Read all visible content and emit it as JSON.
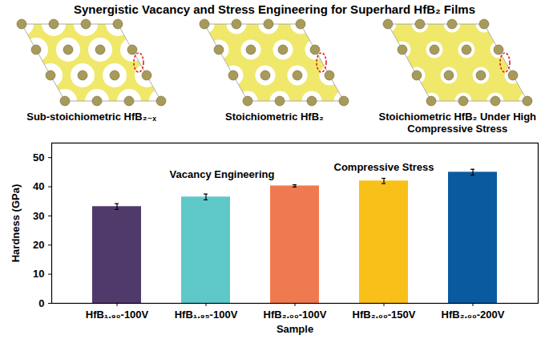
{
  "title": "Synergistic Vacancy and Stress Engineering for Superhard HfB₂ Films",
  "panels": [
    "Sub-stoichiometric HfB₂₋ₓ",
    "Stoichiometric HfB₂",
    "Stoichiometric HfB₂ Under High Compressive Stress"
  ],
  "chart_data": {
    "type": "bar",
    "categories": [
      "HfB₁.₉₀-100V",
      "HfB₁.₉₅-100V",
      "HfB₂.₀₀-100V",
      "HfB₂.₀₀-150V",
      "HfB₂.₀₀-200V"
    ],
    "values": [
      33.2,
      36.5,
      40.3,
      42.0,
      45.0
    ],
    "errors": [
      1.0,
      1.0,
      0.4,
      0.9,
      1.0
    ],
    "colors": [
      "#4f3a6b",
      "#5ec8c8",
      "#f07a50",
      "#f8c018",
      "#0a5aa0"
    ],
    "xlabel": "Sample",
    "ylabel": "Hardness (GPa)",
    "ylim": [
      0,
      55
    ],
    "yticks": [
      0,
      10,
      20,
      30,
      40,
      50
    ],
    "grid": false,
    "annotations": [
      "Vacancy Engineering",
      "Compressive Stress"
    ]
  }
}
